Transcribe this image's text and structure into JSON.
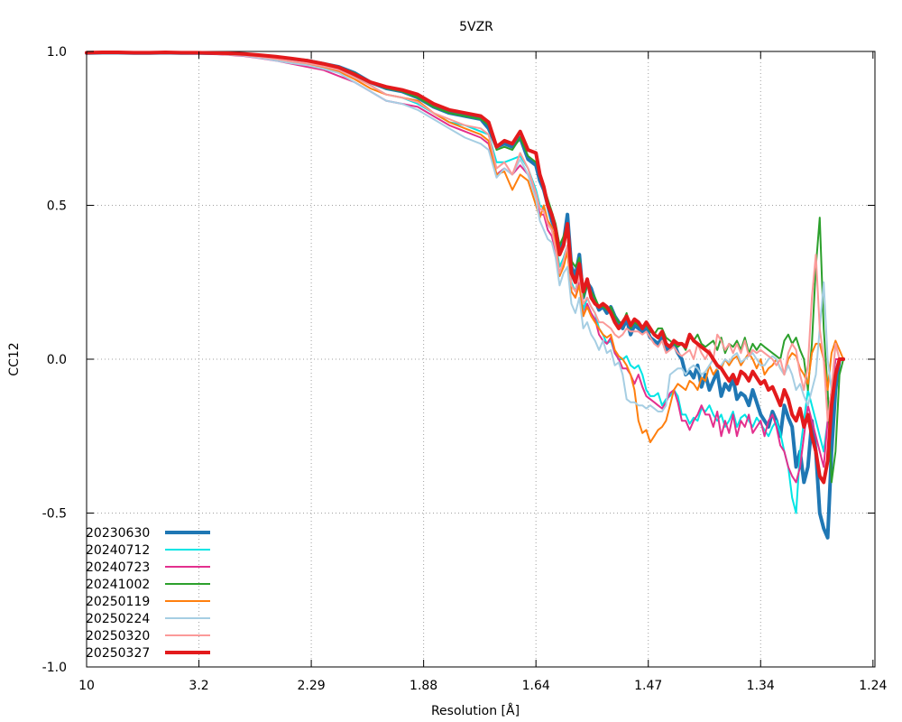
{
  "chart_data": {
    "type": "line",
    "title": "5VZR",
    "xlabel": "Resolution [Å]",
    "ylabel": "CC12",
    "ylim": [
      -1.0,
      1.0
    ],
    "xlim": [
      0,
      100
    ],
    "y_ticks": [
      1.0,
      0.5,
      0.0,
      -0.5,
      -1.0
    ],
    "y_tick_labels": [
      "1.0",
      "0.5",
      "0.0",
      "-0.5",
      "-1.0"
    ],
    "x_ticks": [
      0,
      14.25,
      28.5,
      42.75,
      57.0,
      71.25,
      85.5,
      99.75
    ],
    "x_tick_labels": [
      "10",
      "3.2",
      "2.29",
      "1.88",
      "1.64",
      "1.47",
      "1.34",
      "1.24"
    ],
    "grid": true,
    "legend_position": "bottom-left",
    "x_common": [
      0,
      2,
      4,
      6,
      8,
      10,
      12,
      14,
      16,
      18,
      20,
      22,
      24,
      26,
      28,
      30,
      32,
      34,
      36,
      38,
      40,
      42,
      44,
      46,
      48,
      50,
      51,
      52,
      53,
      54,
      55,
      56,
      57,
      57.5,
      58,
      58.5,
      59,
      59.5,
      60,
      60.5,
      61,
      61.5,
      62,
      62.5,
      63,
      63.5,
      64,
      64.5,
      65,
      65.5,
      66,
      66.5,
      67,
      67.5,
      68,
      68.5,
      69,
      69.5,
      70,
      70.5,
      71,
      71.5,
      72,
      72.5,
      73,
      73.5,
      74,
      74.5,
      75,
      75.5,
      76,
      76.5,
      77,
      77.5,
      78,
      78.5,
      79,
      79.5,
      80,
      80.5,
      81,
      81.5,
      82,
      82.5,
      83,
      83.5,
      84,
      84.5,
      85,
      85.5,
      86,
      86.5,
      87,
      87.5,
      88,
      88.5,
      89,
      89.5,
      90,
      90.5,
      91,
      91.5,
      92,
      92.5,
      93,
      93.5,
      94,
      94.5,
      95,
      95.5,
      96,
      96.5,
      97,
      97.5,
      98,
      98.5,
      99,
      99.5,
      100
    ],
    "series": [
      {
        "name": "20230630",
        "color": "#1f77b4",
        "width": 4,
        "values": [
          0.995,
          0.996,
          0.996,
          0.995,
          0.995,
          0.996,
          0.995,
          0.995,
          0.994,
          0.993,
          0.99,
          0.985,
          0.98,
          0.975,
          0.97,
          0.96,
          0.95,
          0.93,
          0.9,
          0.88,
          0.87,
          0.85,
          0.82,
          0.8,
          0.79,
          0.78,
          0.75,
          0.69,
          0.7,
          0.69,
          0.72,
          0.65,
          0.63,
          0.58,
          0.55,
          0.5,
          0.45,
          0.42,
          0.35,
          0.38,
          0.47,
          0.3,
          0.27,
          0.34,
          0.2,
          0.25,
          0.23,
          0.19,
          0.16,
          0.17,
          0.15,
          0.17,
          0.14,
          0.12,
          0.1,
          0.13,
          0.08,
          0.11,
          0.1,
          0.09,
          0.1,
          0.07,
          0.06,
          0.05,
          0.07,
          0.03,
          0.04,
          0.05,
          0.02,
          0.0,
          -0.05,
          -0.04,
          -0.06,
          -0.02,
          -0.09,
          -0.05,
          -0.1,
          -0.07,
          -0.04,
          -0.12,
          -0.08,
          -0.1,
          -0.06,
          -0.13,
          -0.11,
          -0.12,
          -0.15,
          -0.1,
          -0.14,
          -0.18,
          -0.2,
          -0.22,
          -0.17,
          -0.2,
          -0.25,
          -0.15,
          -0.19,
          -0.22,
          -0.35,
          -0.3,
          -0.4,
          -0.35,
          -0.2,
          -0.3,
          -0.5,
          -0.55,
          -0.58,
          -0.3,
          -0.1,
          0.0,
          0.0
        ]
      },
      {
        "name": "20240712",
        "color": "#00e5e5",
        "width": 2,
        "values": [
          0.995,
          0.995,
          0.995,
          0.995,
          0.994,
          0.995,
          0.994,
          0.994,
          0.993,
          0.99,
          0.988,
          0.982,
          0.975,
          0.966,
          0.96,
          0.95,
          0.94,
          0.92,
          0.89,
          0.86,
          0.85,
          0.83,
          0.8,
          0.77,
          0.76,
          0.74,
          0.73,
          0.64,
          0.64,
          0.65,
          0.66,
          0.62,
          0.55,
          0.5,
          0.49,
          0.44,
          0.42,
          0.38,
          0.3,
          0.33,
          0.37,
          0.25,
          0.22,
          0.28,
          0.16,
          0.2,
          0.17,
          0.15,
          0.1,
          0.08,
          0.05,
          0.06,
          0.02,
          0.0,
          0.0,
          0.01,
          -0.02,
          -0.03,
          -0.02,
          -0.05,
          -0.1,
          -0.12,
          -0.12,
          -0.11,
          -0.15,
          -0.13,
          -0.12,
          -0.1,
          -0.12,
          -0.18,
          -0.18,
          -0.21,
          -0.19,
          -0.2,
          -0.16,
          -0.17,
          -0.15,
          -0.18,
          -0.2,
          -0.18,
          -0.22,
          -0.2,
          -0.17,
          -0.22,
          -0.19,
          -0.18,
          -0.2,
          -0.22,
          -0.19,
          -0.21,
          -0.23,
          -0.25,
          -0.22,
          -0.2,
          -0.24,
          -0.3,
          -0.35,
          -0.45,
          -0.5,
          -0.3,
          -0.2,
          -0.1,
          -0.15,
          -0.2,
          -0.25,
          -0.3,
          -0.2,
          -0.1,
          0.0,
          0.0,
          0.0
        ]
      },
      {
        "name": "20240723",
        "color": "#e3308e",
        "width": 2,
        "values": [
          0.995,
          0.995,
          0.995,
          0.994,
          0.994,
          0.994,
          0.994,
          0.993,
          0.992,
          0.989,
          0.985,
          0.978,
          0.97,
          0.96,
          0.95,
          0.94,
          0.92,
          0.9,
          0.87,
          0.84,
          0.83,
          0.82,
          0.79,
          0.76,
          0.74,
          0.72,
          0.7,
          0.6,
          0.62,
          0.6,
          0.63,
          0.6,
          0.53,
          0.47,
          0.47,
          0.42,
          0.4,
          0.35,
          0.27,
          0.31,
          0.35,
          0.22,
          0.2,
          0.25,
          0.14,
          0.18,
          0.15,
          0.13,
          0.08,
          0.06,
          0.05,
          0.07,
          0.02,
          0.0,
          -0.03,
          -0.03,
          -0.05,
          -0.08,
          -0.05,
          -0.09,
          -0.12,
          -0.13,
          -0.14,
          -0.15,
          -0.16,
          -0.14,
          -0.11,
          -0.1,
          -0.14,
          -0.2,
          -0.2,
          -0.23,
          -0.2,
          -0.18,
          -0.15,
          -0.18,
          -0.18,
          -0.22,
          -0.17,
          -0.25,
          -0.2,
          -0.24,
          -0.18,
          -0.25,
          -0.2,
          -0.22,
          -0.18,
          -0.24,
          -0.22,
          -0.2,
          -0.25,
          -0.2,
          -0.18,
          -0.22,
          -0.28,
          -0.3,
          -0.35,
          -0.38,
          -0.4,
          -0.35,
          -0.25,
          -0.15,
          -0.2,
          -0.25,
          -0.3,
          -0.35,
          -0.2,
          -0.1,
          0.0,
          0.0,
          0.0
        ]
      },
      {
        "name": "20241002",
        "color": "#2ca02c",
        "width": 2,
        "values": [
          0.996,
          0.996,
          0.996,
          0.996,
          0.995,
          0.996,
          0.996,
          0.995,
          0.995,
          0.994,
          0.992,
          0.988,
          0.984,
          0.978,
          0.972,
          0.962,
          0.95,
          0.93,
          0.9,
          0.88,
          0.87,
          0.85,
          0.82,
          0.8,
          0.79,
          0.78,
          0.76,
          0.68,
          0.69,
          0.68,
          0.72,
          0.66,
          0.64,
          0.6,
          0.56,
          0.52,
          0.48,
          0.44,
          0.37,
          0.4,
          0.44,
          0.32,
          0.3,
          0.33,
          0.2,
          0.24,
          0.22,
          0.2,
          0.17,
          0.17,
          0.16,
          0.17,
          0.14,
          0.12,
          0.12,
          0.15,
          0.1,
          0.12,
          0.11,
          0.1,
          0.11,
          0.09,
          0.08,
          0.1,
          0.1,
          0.07,
          0.06,
          0.05,
          0.04,
          0.05,
          0.03,
          0.07,
          0.06,
          0.08,
          0.05,
          0.04,
          0.05,
          0.06,
          0.03,
          0.07,
          0.02,
          0.05,
          0.04,
          0.06,
          0.03,
          0.07,
          0.02,
          0.05,
          0.03,
          0.05,
          0.04,
          0.03,
          0.02,
          0.01,
          0.0,
          0.06,
          0.08,
          0.05,
          0.07,
          0.03,
          0.0,
          -0.1,
          0.05,
          0.3,
          0.46,
          0.1,
          -0.1,
          -0.4,
          -0.3,
          -0.05,
          0.0
        ]
      },
      {
        "name": "20250119",
        "color": "#ff7f0e",
        "width": 2,
        "values": [
          0.995,
          0.996,
          0.995,
          0.995,
          0.995,
          0.995,
          0.995,
          0.994,
          0.993,
          0.99,
          0.987,
          0.98,
          0.973,
          0.965,
          0.958,
          0.948,
          0.935,
          0.91,
          0.88,
          0.86,
          0.85,
          0.84,
          0.8,
          0.77,
          0.75,
          0.73,
          0.71,
          0.6,
          0.61,
          0.55,
          0.6,
          0.58,
          0.5,
          0.46,
          0.5,
          0.45,
          0.43,
          0.38,
          0.27,
          0.3,
          0.35,
          0.22,
          0.2,
          0.24,
          0.14,
          0.17,
          0.14,
          0.12,
          0.1,
          0.08,
          0.07,
          0.08,
          0.03,
          0.01,
          0.0,
          -0.02,
          -0.05,
          -0.1,
          -0.2,
          -0.24,
          -0.23,
          -0.27,
          -0.25,
          -0.23,
          -0.22,
          -0.2,
          -0.15,
          -0.1,
          -0.08,
          -0.09,
          -0.1,
          -0.07,
          -0.08,
          -0.1,
          -0.06,
          -0.07,
          -0.02,
          -0.05,
          -0.03,
          -0.03,
          0.0,
          -0.02,
          0.0,
          0.01,
          -0.02,
          0.0,
          0.02,
          0.0,
          -0.03,
          0.0,
          -0.05,
          -0.03,
          -0.02,
          0.0,
          -0.03,
          -0.05,
          0.0,
          0.02,
          0.01,
          -0.03,
          -0.05,
          -0.08,
          0.02,
          0.05,
          0.05,
          0.0,
          -0.1,
          0.02,
          0.06,
          0.03,
          0.0
        ]
      },
      {
        "name": "20250224",
        "color": "#a6cee3",
        "width": 2,
        "values": [
          0.995,
          0.995,
          0.995,
          0.995,
          0.994,
          0.995,
          0.995,
          0.994,
          0.993,
          0.99,
          0.986,
          0.979,
          0.97,
          0.962,
          0.955,
          0.944,
          0.93,
          0.9,
          0.87,
          0.84,
          0.83,
          0.81,
          0.78,
          0.75,
          0.72,
          0.7,
          0.68,
          0.59,
          0.62,
          0.6,
          0.65,
          0.6,
          0.52,
          0.45,
          0.42,
          0.39,
          0.38,
          0.33,
          0.24,
          0.28,
          0.3,
          0.18,
          0.15,
          0.2,
          0.1,
          0.12,
          0.08,
          0.06,
          0.03,
          0.06,
          0.02,
          0.03,
          -0.02,
          -0.01,
          -0.05,
          -0.13,
          -0.14,
          -0.14,
          -0.15,
          -0.15,
          -0.16,
          -0.15,
          -0.16,
          -0.17,
          -0.17,
          -0.15,
          -0.05,
          -0.04,
          -0.03,
          -0.03,
          -0.05,
          -0.03,
          -0.02,
          -0.03,
          -0.05,
          -0.04,
          -0.02,
          0.0,
          -0.03,
          -0.02,
          0.0,
          -0.01,
          0.01,
          0.02,
          -0.01,
          0.0,
          0.01,
          0.02,
          0.0,
          -0.02,
          -0.02,
          0.0,
          0.01,
          0.0,
          -0.03,
          -0.05,
          -0.02,
          -0.05,
          -0.1,
          -0.08,
          -0.12,
          -0.15,
          -0.1,
          -0.05,
          0.1,
          0.25,
          0.0,
          -0.1,
          0.05,
          0.0,
          0.0
        ]
      },
      {
        "name": "20250320",
        "color": "#fb9a99",
        "width": 2,
        "values": [
          0.995,
          0.995,
          0.995,
          0.995,
          0.995,
          0.995,
          0.995,
          0.994,
          0.993,
          0.991,
          0.988,
          0.982,
          0.976,
          0.968,
          0.962,
          0.952,
          0.94,
          0.915,
          0.89,
          0.86,
          0.85,
          0.835,
          0.8,
          0.78,
          0.76,
          0.75,
          0.73,
          0.62,
          0.64,
          0.6,
          0.67,
          0.62,
          0.54,
          0.49,
          0.48,
          0.44,
          0.42,
          0.36,
          0.28,
          0.32,
          0.37,
          0.24,
          0.22,
          0.27,
          0.18,
          0.2,
          0.17,
          0.15,
          0.12,
          0.12,
          0.11,
          0.1,
          0.08,
          0.07,
          0.08,
          0.1,
          0.09,
          0.09,
          0.09,
          0.08,
          0.09,
          0.07,
          0.05,
          0.04,
          0.06,
          0.02,
          0.03,
          0.04,
          0.02,
          0.01,
          0.02,
          0.03,
          0.0,
          0.05,
          0.02,
          0.0,
          0.03,
          0.0,
          0.08,
          0.06,
          0.03,
          0.05,
          0.02,
          0.05,
          0.02,
          0.06,
          0.01,
          0.03,
          0.02,
          0.03,
          0.02,
          0.01,
          0.0,
          -0.02,
          0.0,
          -0.05,
          0.02,
          0.05,
          0.03,
          -0.05,
          -0.1,
          -0.02,
          0.2,
          0.34,
          0.1,
          0.0,
          -0.2,
          -0.1,
          0.05,
          0.0,
          0.0
        ]
      },
      {
        "name": "20250327",
        "color": "#e31a1c",
        "width": 4,
        "values": [
          0.996,
          0.997,
          0.997,
          0.996,
          0.996,
          0.997,
          0.996,
          0.996,
          0.995,
          0.994,
          0.992,
          0.988,
          0.983,
          0.977,
          0.97,
          0.96,
          0.948,
          0.925,
          0.9,
          0.885,
          0.875,
          0.86,
          0.83,
          0.81,
          0.8,
          0.79,
          0.77,
          0.69,
          0.71,
          0.7,
          0.74,
          0.68,
          0.67,
          0.6,
          0.56,
          0.5,
          0.47,
          0.42,
          0.34,
          0.37,
          0.44,
          0.28,
          0.25,
          0.31,
          0.22,
          0.26,
          0.2,
          0.18,
          0.17,
          0.18,
          0.17,
          0.15,
          0.12,
          0.1,
          0.12,
          0.14,
          0.11,
          0.13,
          0.12,
          0.1,
          0.12,
          0.1,
          0.08,
          0.07,
          0.09,
          0.05,
          0.04,
          0.06,
          0.05,
          0.05,
          0.04,
          0.08,
          0.06,
          0.05,
          0.04,
          0.03,
          0.02,
          0.0,
          -0.02,
          -0.03,
          -0.05,
          -0.07,
          -0.05,
          -0.08,
          -0.04,
          -0.05,
          -0.07,
          -0.04,
          -0.06,
          -0.08,
          -0.07,
          -0.1,
          -0.09,
          -0.12,
          -0.15,
          -0.1,
          -0.13,
          -0.18,
          -0.2,
          -0.16,
          -0.22,
          -0.18,
          -0.25,
          -0.3,
          -0.38,
          -0.4,
          -0.33,
          -0.15,
          -0.05,
          0.0,
          0.0
        ]
      }
    ]
  }
}
